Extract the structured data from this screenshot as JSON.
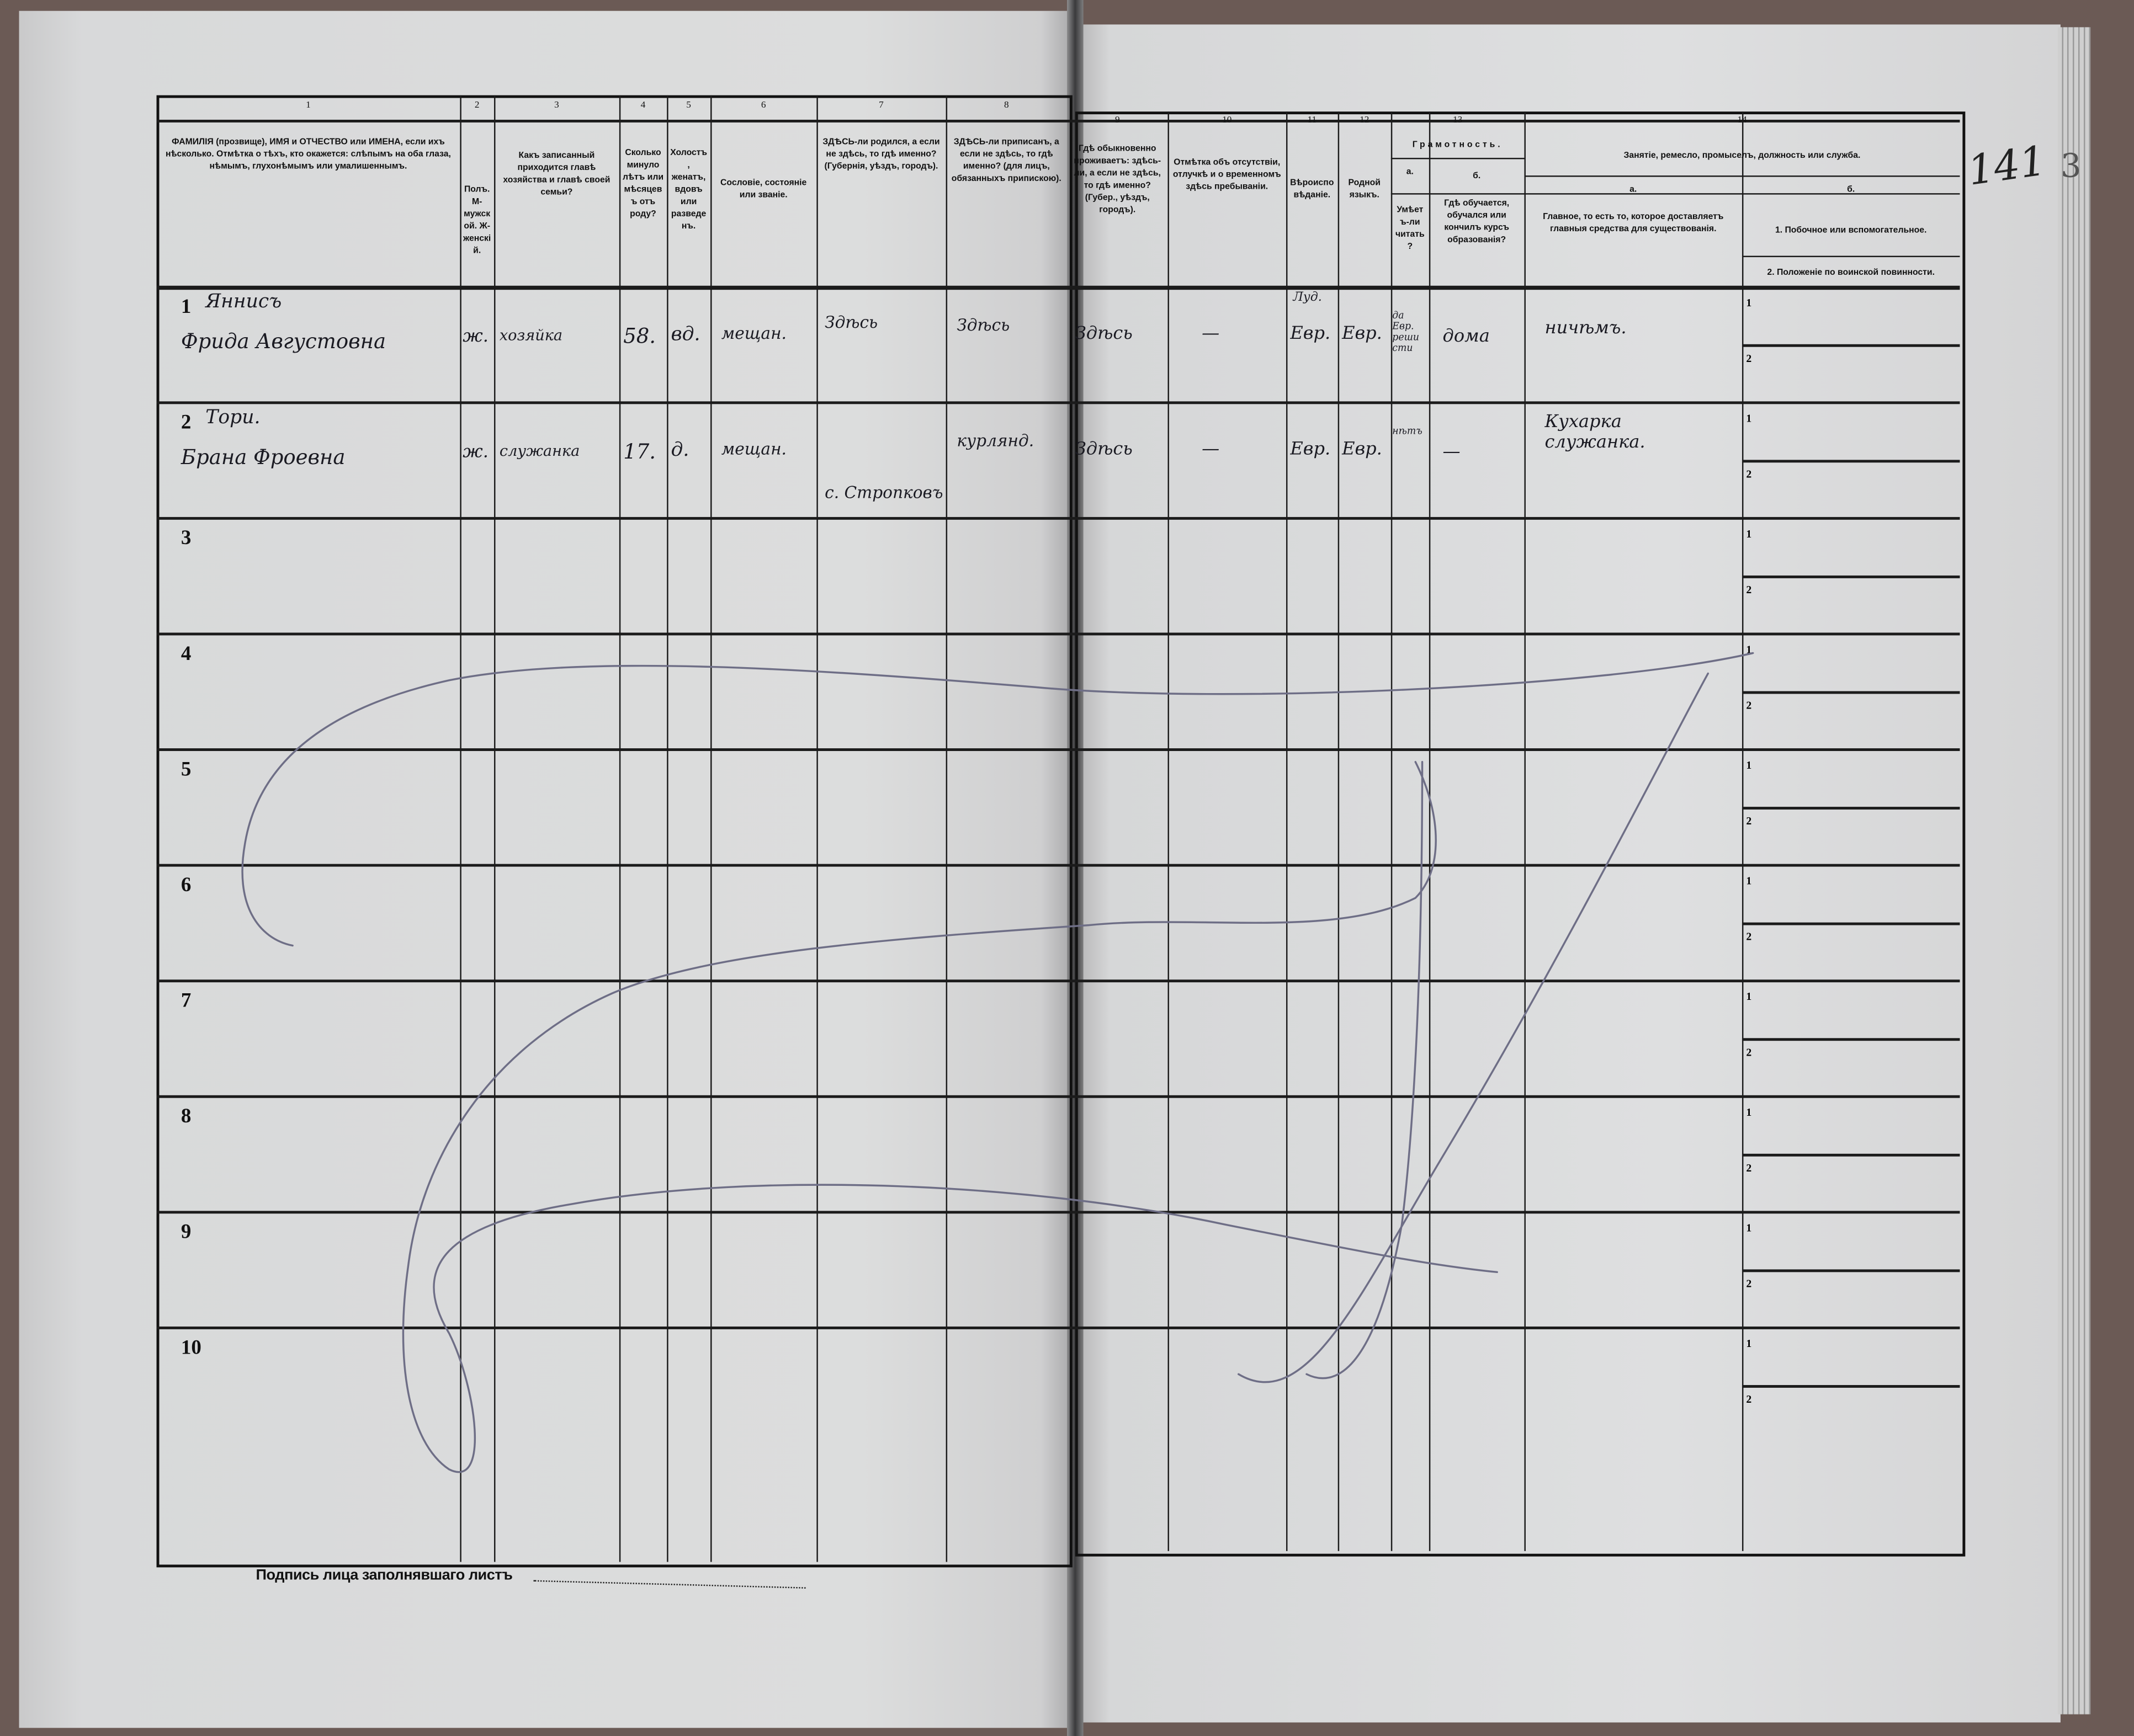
{
  "page_number": "141",
  "page_number_suffix": "3",
  "column_numbers": [
    "1",
    "2",
    "3",
    "4",
    "5",
    "6",
    "7",
    "8",
    "9",
    "10",
    "11",
    "12",
    "13",
    "14"
  ],
  "headers": {
    "c1": "ФАМИЛІЯ (прозвище), ИМЯ и ОТЧЕСТВО или ИМЕНА, если ихъ нѣсколько. Отмѣтка о тѣхъ, кто окажется: слѣпымъ на оба глаза, нѣмымъ, глухонѣмымъ или умалишеннымъ.",
    "c2": "Полъ. М-мужской. Ж-женскій.",
    "c3": "Какъ записанный приходится главѣ хозяйства и главѣ своей семьи?",
    "c4": "Сколько минуло лѣтъ или мѣсяцевъ отъ роду?",
    "c5": "Холостъ, женатъ, вдовъ или разведенъ.",
    "c6": "Сословіе, состояніе или званіе.",
    "c7": "ЗДѢСЬ-ли родился, а если не здѣсь, то гдѣ именно? (Губернія, уѣздъ, городъ).",
    "c8": "ЗДѢСЬ-ли приписанъ, а если не здѣсь, то гдѣ именно? (для лицъ, обязанныхъ припискою).",
    "c9": "Гдѣ обыкновенно проживаетъ: здѣсь-ли, а если не здѣсь, то гдѣ именно? (Губер., уѣздъ, городъ).",
    "c10": "Отмѣтка объ отсутствіи, отлучкѣ и о временномъ здѣсь пребываніи.",
    "c11": "Вѣроисповѣданіе.",
    "c12": "Родной языкъ.",
    "c13": "Грамотность.",
    "c13a_letter": "а.",
    "c13a": "Умѣетъ-ли читать?",
    "c13b_letter": "б.",
    "c13b": "Гдѣ обучается, обучался или кончилъ курсъ образованія?",
    "c14": "Занятіе, ремесло, промыселъ, должность или служба.",
    "c14a_letter": "а.",
    "c14a": "Главное, то есть то, которое доставляетъ главныя средства для существованія.",
    "c14b_letter": "б.",
    "c14b1": "1. Побочное или вспомогательное.",
    "c14b2": "2. Положеніе по воинской повинности."
  },
  "row_numbers": [
    "1",
    "2",
    "3",
    "4",
    "5",
    "6",
    "7",
    "8",
    "9",
    "10"
  ],
  "sub_row_labels": [
    "1",
    "2"
  ],
  "entries": [
    {
      "surname": "Яннисъ",
      "name": "Фрида Августовна",
      "sex": "ж.",
      "relation": "хозяйка",
      "age": "58.",
      "marital": "вд.",
      "estate": "мещан.",
      "birthplace": "Здѣсь",
      "registered": "Здѣсь",
      "residence": "Здѣсь",
      "absence": "—",
      "religion_note": "Луд.",
      "religion": "Евр.",
      "language": "Евр.",
      "literacy": "да Евр. реши сти",
      "education": "дома",
      "occupation": "ничѣмъ."
    },
    {
      "surname": "Тори.",
      "name": "Брана Фроевна",
      "sex": "ж.",
      "relation": "служанка",
      "age": "17.",
      "marital": "д.",
      "estate": "мещан.",
      "birthplace": "с. Стропковъ",
      "registered": "курлянд.",
      "residence": "Здѣсь",
      "absence": "—",
      "religion_note": "",
      "religion": "Евр.",
      "language": "Евр.",
      "literacy": "нѣтъ",
      "education": "—",
      "occupation": "Кухарка служанка."
    }
  ],
  "signature_label": "Подпись лица заполнявшаго листъ",
  "colors": {
    "paper": "#dcdddd",
    "ink": "#111111",
    "pencil": "#6e6e86",
    "table": "#6b5a55"
  }
}
